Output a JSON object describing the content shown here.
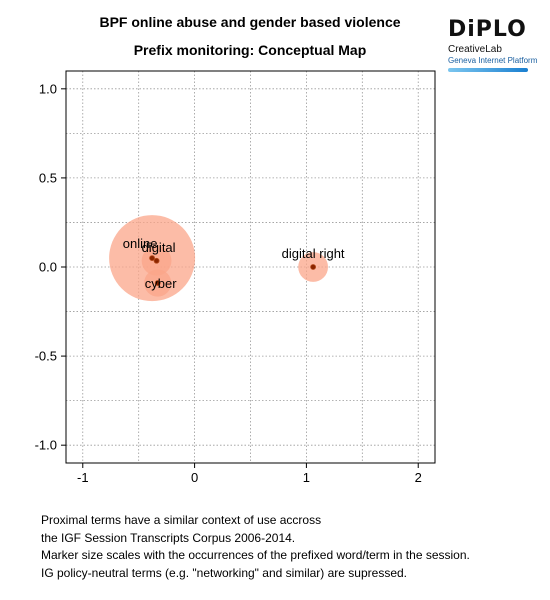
{
  "header": {
    "title": "BPF online abuse and gender based violence",
    "subtitle": "Prefix monitoring: Conceptual Map"
  },
  "logo": {
    "brand": "DiPLO",
    "line1": "CreativeLab",
    "line2": "Geneva Internet Platform"
  },
  "chart_data": {
    "type": "scatter",
    "title": "Prefix monitoring: Conceptual Map",
    "xlim": [
      -1.15,
      2.15
    ],
    "ylim": [
      -1.1,
      1.1
    ],
    "x_ticks": [
      -1,
      0,
      1,
      2
    ],
    "y_ticks": [
      1.0,
      0.5,
      0.0,
      -0.5,
      -1.0
    ],
    "x_tick_labels": [
      "-1",
      "0",
      "1",
      "2"
    ],
    "y_tick_labels": [
      "1.0",
      "0.5",
      "0.0",
      "-0.5",
      "-1.0"
    ],
    "grid": true,
    "marker_color": "#8b2500",
    "bubble_color": "#fba58a",
    "points": [
      {
        "label": "online",
        "x": -0.38,
        "y": 0.05,
        "size": 1.0
      },
      {
        "label": "digital",
        "x": -0.34,
        "y": 0.035,
        "size": 0.12
      },
      {
        "label": "cyber",
        "x": -0.33,
        "y": -0.09,
        "size": 0.1
      },
      {
        "label": "digital right",
        "x": 1.06,
        "y": 0.0,
        "size": 0.12
      }
    ]
  },
  "notes": [
    "Proximal terms have a similar context of use accross",
    "the IGF Session Transcripts Corpus 2006-2014.",
    "Marker size scales with the occurrences of the prefixed word/term in the session.",
    "IG policy-neutral terms (e.g. \"networking\" and similar) are supressed."
  ]
}
